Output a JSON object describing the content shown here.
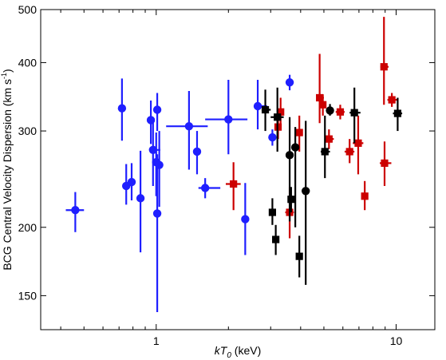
{
  "chart_data": {
    "type": "scatter",
    "title": "",
    "xlabel": {
      "prefix": "kT",
      "sub": "0",
      "suffix": " (keV)"
    },
    "ylabel": {
      "main": "BCG Central Velocity Dispersion (km s",
      "sup": "-1",
      "end": ")"
    },
    "xscale": "log",
    "yscale": "log",
    "xlim": [
      0.33,
      14.5
    ],
    "ylim": [
      130,
      500
    ],
    "xticks": [
      1,
      10
    ],
    "xtick_labels": [
      "1",
      "10"
    ],
    "yticks": [
      150,
      200,
      300,
      400,
      500
    ],
    "ytick_labels": [
      "150",
      "200",
      "300",
      "400",
      "500"
    ],
    "grid": false,
    "series": [
      {
        "color": "#1f1fff",
        "marker": "circle",
        "points": [
          {
            "x": 0.46,
            "y": 215,
            "xerr": [
              0.42,
              0.5
            ],
            "yerr": [
              196,
              232
            ]
          },
          {
            "x": 0.72,
            "y": 330,
            "xerr": null,
            "yerr": [
              288,
              374
            ]
          },
          {
            "x": 0.75,
            "y": 238,
            "xerr": null,
            "yerr": [
              220,
              261
            ]
          },
          {
            "x": 0.79,
            "y": 242,
            "xerr": null,
            "yerr": [
              224,
              262
            ]
          },
          {
            "x": 0.86,
            "y": 226,
            "xerr": null,
            "yerr": [
              180,
              276
            ]
          },
          {
            "x": 0.95,
            "y": 314,
            "xerr": null,
            "yerr": [
              284,
              341
            ]
          },
          {
            "x": 0.97,
            "y": 277,
            "xerr": [
              0.94,
              1.04
            ],
            "yerr": [
              238,
              315
            ]
          },
          {
            "x": 1.0,
            "y": 263,
            "xerr": null,
            "yerr": [
              228,
              298
            ]
          },
          {
            "x": 1.01,
            "y": 328,
            "xerr": null,
            "yerr": [
              300,
              352
            ]
          },
          {
            "x": 1.01,
            "y": 212,
            "xerr": null,
            "yerr": [
              140,
              272
            ]
          },
          {
            "x": 1.03,
            "y": 260,
            "xerr": null,
            "yerr": [
              218,
              300
            ]
          },
          {
            "x": 1.37,
            "y": 306,
            "xerr": [
              1.1,
              1.64
            ],
            "yerr": [
              255,
              355
            ]
          },
          {
            "x": 1.48,
            "y": 275,
            "xerr": null,
            "yerr": [
              250,
              300
            ]
          },
          {
            "x": 1.6,
            "y": 236,
            "xerr": [
              1.5,
              1.85
            ],
            "yerr": [
              226,
              246
            ]
          },
          {
            "x": 2.0,
            "y": 315,
            "xerr": [
              1.6,
              2.4
            ],
            "yerr": [
              272,
              372
            ]
          },
          {
            "x": 2.35,
            "y": 207,
            "xerr": null,
            "yerr": [
              178,
              241
            ]
          },
          {
            "x": 2.65,
            "y": 333,
            "xerr": [
              2.55,
              2.9
            ],
            "yerr": [
              302,
              372
            ]
          },
          {
            "x": 3.05,
            "y": 292,
            "xerr": null,
            "yerr": [
              282,
              302
            ]
          },
          {
            "x": 3.6,
            "y": 368,
            "xerr": null,
            "yerr": [
              356,
              380
            ]
          }
        ]
      },
      {
        "color": "#cc0000",
        "marker": "square",
        "points": [
          {
            "x": 2.1,
            "y": 240,
            "xerr": [
              1.95,
              2.25
            ],
            "yerr": [
              215,
              263
            ]
          },
          {
            "x": 3.3,
            "y": 325,
            "xerr": [
              3.2,
              3.4
            ],
            "yerr": [
              305,
              345
            ]
          },
          {
            "x": 3.22,
            "y": 305,
            "xerr": null,
            "yerr": [
              290,
              320
            ]
          },
          {
            "x": 3.6,
            "y": 213,
            "xerr": [
              3.45,
              3.75
            ],
            "yerr": [
              191,
              237
            ]
          },
          {
            "x": 3.95,
            "y": 298,
            "xerr": null,
            "yerr": [
              275,
              320
            ]
          },
          {
            "x": 4.8,
            "y": 345,
            "xerr": [
              4.65,
              5.0
            ],
            "yerr": [
              310,
              415
            ]
          },
          {
            "x": 4.95,
            "y": 335,
            "xerr": [
              4.8,
              5.1
            ],
            "yerr": [
              320,
              350
            ]
          },
          {
            "x": 5.25,
            "y": 290,
            "xerr": [
              5.1,
              5.5
            ],
            "yerr": [
              278,
              302
            ]
          },
          {
            "x": 5.85,
            "y": 325,
            "xerr": [
              5.6,
              6.1
            ],
            "yerr": [
              315,
              335
            ]
          },
          {
            "x": 6.4,
            "y": 275,
            "xerr": [
              6.1,
              6.7
            ],
            "yerr": [
              262,
              290
            ]
          },
          {
            "x": 6.95,
            "y": 285,
            "xerr": [
              6.6,
              7.3
            ],
            "yerr": [
              250,
              320
            ]
          },
          {
            "x": 7.4,
            "y": 228,
            "xerr": [
              7.2,
              7.6
            ],
            "yerr": [
              215,
              243
            ]
          },
          {
            "x": 8.9,
            "y": 393,
            "xerr": [
              8.6,
              9.3
            ],
            "yerr": [
              335,
              485
            ]
          },
          {
            "x": 8.95,
            "y": 262,
            "xerr": [
              8.55,
              9.55
            ],
            "yerr": [
              238,
              287
            ]
          },
          {
            "x": 9.6,
            "y": 342,
            "xerr": [
              9.2,
              10.2
            ],
            "yerr": [
              332,
              352
            ]
          }
        ]
      },
      {
        "color": "#000000",
        "marker": "square",
        "points": [
          {
            "x": 2.85,
            "y": 328,
            "xerr": [
              2.75,
              3.0
            ],
            "yerr": [
              300,
              357
            ]
          },
          {
            "x": 3.05,
            "y": 213,
            "xerr": null,
            "yerr": [
              202,
              226
            ]
          },
          {
            "x": 3.2,
            "y": 318,
            "xerr": [
              3.0,
              3.4
            ],
            "yerr": [
              275,
              360
            ]
          },
          {
            "x": 3.15,
            "y": 190,
            "xerr": null,
            "yerr": [
              178,
              202
            ]
          },
          {
            "x": 3.65,
            "y": 225,
            "xerr": null,
            "yerr": [
              213,
              237
            ]
          },
          {
            "x": 3.95,
            "y": 177,
            "xerr": null,
            "yerr": [
              162,
              193
            ]
          },
          {
            "x": 5.05,
            "y": 275,
            "xerr": [
              4.85,
              5.3
            ],
            "yerr": [
              246,
              320
            ]
          },
          {
            "x": 6.7,
            "y": 324,
            "xerr": [
              6.4,
              7.1
            ],
            "yerr": [
              285,
              360
            ]
          },
          {
            "x": 10.15,
            "y": 323,
            "xerr": [
              9.7,
              10.6
            ],
            "yerr": [
              300,
              345
            ]
          }
        ]
      },
      {
        "color": "#000000",
        "marker": "circle",
        "points": [
          {
            "x": 3.6,
            "y": 271,
            "xerr": null,
            "yerr": [
              205,
              318
            ]
          },
          {
            "x": 3.8,
            "y": 280,
            "xerr": null,
            "yerr": [
              200,
              305
            ]
          },
          {
            "x": 4.2,
            "y": 233,
            "xerr": null,
            "yerr": [
              157,
              313
            ]
          },
          {
            "x": 5.3,
            "y": 327,
            "xerr": [
              5.2,
              5.4
            ],
            "yerr": [
              320,
              336
            ]
          }
        ]
      }
    ]
  }
}
